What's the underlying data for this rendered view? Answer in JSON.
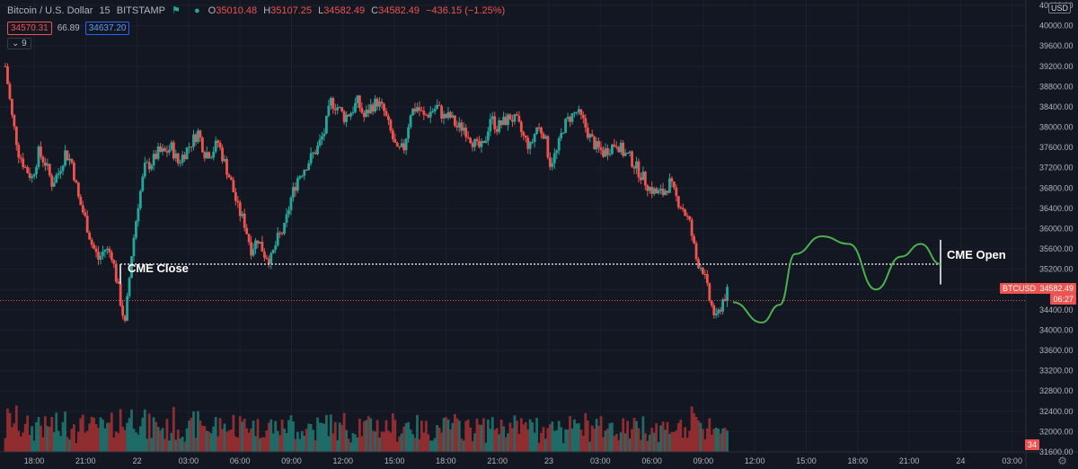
{
  "header": {
    "symbol": "Bitcoin / U.S. Dollar",
    "interval": "15",
    "exchange": "BITSTAMP",
    "ohlc": {
      "o_label": "O",
      "o": "35010.48",
      "h_label": "H",
      "h": "35107.25",
      "l_label": "L",
      "l": "34582.49",
      "c_label": "C",
      "c": "34582.49",
      "change": "−436.15 (−1.25%)"
    },
    "bid": "34570.31",
    "spread": "66.89",
    "ask": "34637.20",
    "indicator_count": "9"
  },
  "currency_button": "USD",
  "annotations": {
    "cme_close": "CME Close",
    "cme_open": "CME Open"
  },
  "price_tag": {
    "symbol": "BTCUSD",
    "price": "34582.49",
    "countdown": "06:27"
  },
  "volume_tag": "34",
  "colors": {
    "up": "#26a69a",
    "down": "#ef5350",
    "vol_up": "#1e6b67",
    "vol_down": "#8f2d31",
    "projection": "#4caf50",
    "background": "#131722"
  },
  "chart_data": {
    "type": "candlestick",
    "title": "Bitcoin / U.S. Dollar, 15, BITSTAMP",
    "ylim": [
      31600,
      40400
    ],
    "y_ticks": [
      "40400.00",
      "40000.00",
      "39600.00",
      "39200.00",
      "38800.00",
      "38400.00",
      "38000.00",
      "37600.00",
      "37200.00",
      "36800.00",
      "36400.00",
      "36000.00",
      "35600.00",
      "35200.00",
      "34800.00",
      "34400.00",
      "34000.00",
      "33600.00",
      "33200.00",
      "32800.00",
      "32400.00",
      "32000.00",
      "31600.00"
    ],
    "x_ticks": [
      "18:00",
      "21:00",
      "22",
      "03:00",
      "06:00",
      "09:00",
      "12:00",
      "15:00",
      "18:00",
      "21:00",
      "23",
      "03:00",
      "06:00",
      "09:00",
      "12:00",
      "15:00",
      "18:00",
      "21:00",
      "24",
      "03:00"
    ],
    "cme_level": 35300,
    "last_price": 34582.49,
    "close_path": [
      39200,
      38200,
      37500,
      37200,
      37000,
      37500,
      37300,
      36900,
      37100,
      37500,
      37300,
      36600,
      36200,
      35700,
      35400,
      35600,
      35500,
      34800,
      34100,
      35500,
      36500,
      37200,
      37300,
      37500,
      37500,
      37600,
      37300,
      37500,
      37700,
      37900,
      37500,
      37500,
      37700,
      37300,
      36900,
      36400,
      36100,
      35600,
      35800,
      35500,
      35400,
      35800,
      36000,
      36600,
      37000,
      37200,
      37400,
      37600,
      37900,
      38500,
      38400,
      38200,
      38300,
      38500,
      38200,
      38400,
      38500,
      38300,
      37900,
      37500,
      37600,
      38300,
      38400,
      38200,
      38300,
      38400,
      38200,
      38200,
      38000,
      38000,
      37800,
      37600,
      37600,
      38200,
      38000,
      38100,
      38200,
      38100,
      37800,
      37600,
      38000,
      37900,
      37300,
      37500,
      38000,
      38200,
      38300,
      38100,
      37800,
      37600,
      37500,
      37600,
      37700,
      37500,
      37400,
      37200,
      37000,
      36800,
      36700,
      36700,
      36900,
      36600,
      36400,
      36100,
      35400,
      35200,
      34600,
      34200,
      34600,
      34800
    ]
  }
}
